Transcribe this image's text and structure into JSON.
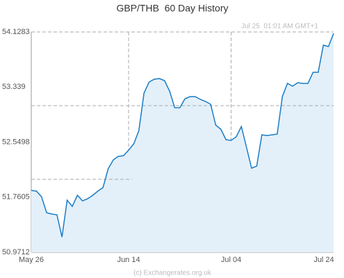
{
  "chart_data": {
    "type": "line",
    "title": "GBP/THB  60 Day History",
    "annotation": "Jul 25  01:01 AM GMT+1",
    "credit": "(c) Exchangerates.org.uk",
    "categories": [
      "May 26",
      null,
      null,
      null,
      null,
      null,
      null,
      null,
      null,
      null,
      null,
      null,
      null,
      null,
      null,
      null,
      null,
      null,
      null,
      "Jun 14",
      null,
      null,
      null,
      null,
      null,
      null,
      null,
      null,
      null,
      null,
      null,
      null,
      null,
      null,
      null,
      null,
      null,
      null,
      null,
      "Jul 04",
      null,
      null,
      null,
      null,
      null,
      null,
      null,
      null,
      null,
      null,
      null,
      null,
      null,
      null,
      null,
      null,
      null,
      null,
      null,
      "Jul 24"
    ],
    "series": [
      {
        "name": "GBP/THB",
        "color": "#1a7bc4",
        "fill": "#e3f0fa",
        "values": [
          51.858,
          51.848,
          51.768,
          51.539,
          51.519,
          51.509,
          51.19,
          51.718,
          51.629,
          51.788,
          51.708,
          51.738,
          51.788,
          51.848,
          51.898,
          52.166,
          52.296,
          52.346,
          52.356,
          52.435,
          52.525,
          52.714,
          53.252,
          53.411,
          53.451,
          53.461,
          53.431,
          53.28,
          53.043,
          53.043,
          53.172,
          53.202,
          53.202,
          53.162,
          53.132,
          53.093,
          52.794,
          52.734,
          52.585,
          52.575,
          52.625,
          52.774,
          52.475,
          52.176,
          52.206,
          52.654,
          52.644,
          52.654,
          52.664,
          53.202,
          53.391,
          53.351,
          53.401,
          53.391,
          53.391,
          53.551,
          53.551,
          53.939,
          53.919,
          54.108
        ]
      }
    ],
    "ylim": [
      50.9712,
      54.1283
    ],
    "yticks": [
      50.9712,
      51.7605,
      52.5498,
      53.339,
      54.1283
    ]
  }
}
